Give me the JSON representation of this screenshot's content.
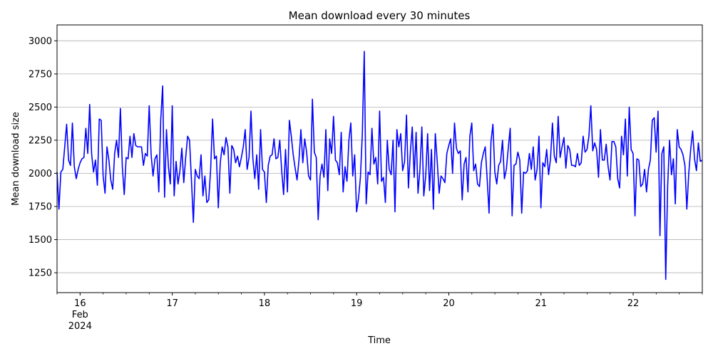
{
  "chart_data": {
    "type": "line",
    "title": "Mean download every 30 minutes",
    "xlabel": "Time",
    "ylabel": "Mean download size",
    "ylim": [
      1100,
      3120
    ],
    "xlim": [
      15.75,
      22.75
    ],
    "x_unit": "day of February 2024 (fractional)",
    "grid": "horizontal",
    "line_color": "#0000ff",
    "x_ticks": [
      {
        "value": 16,
        "label": "16",
        "sub1": "Feb",
        "sub2": "2024"
      },
      {
        "value": 17,
        "label": "17"
      },
      {
        "value": 18,
        "label": "18"
      },
      {
        "value": 19,
        "label": "19"
      },
      {
        "value": 20,
        "label": "20"
      },
      {
        "value": 21,
        "label": "21"
      },
      {
        "value": 22,
        "label": "22"
      }
    ],
    "y_ticks": [
      1250,
      1500,
      1750,
      2000,
      2250,
      2500,
      2750,
      3000
    ],
    "series": [
      {
        "start_day": 15.75,
        "step_days": 0.02083,
        "values": [
          2010,
          1730,
          2010,
          2030,
          2200,
          2370,
          2100,
          2060,
          2380,
          2050,
          1960,
          2030,
          2080,
          2110,
          2120,
          2340,
          2150,
          2520,
          2150,
          2010,
          2100,
          1910,
          2410,
          2400,
          1980,
          1850,
          2200,
          2100,
          1950,
          1880,
          2150,
          2250,
          2120,
          2490,
          2050,
          1840,
          2120,
          2110,
          2280,
          2120,
          2300,
          2210,
          2200,
          2200,
          2200,
          2060,
          2150,
          2130,
          2510,
          2140,
          1980,
          2110,
          2140,
          1860,
          2400,
          2660,
          1820,
          2330,
          2050,
          1920,
          2510,
          1830,
          2090,
          1920,
          2020,
          2190,
          1930,
          2120,
          2280,
          2250,
          1950,
          1630,
          2030,
          1980,
          1960,
          2140,
          1830,
          1980,
          1780,
          1800,
          2030,
          2410,
          2110,
          2130,
          1740,
          2080,
          2200,
          2140,
          2270,
          2200,
          1850,
          2210,
          2180,
          2080,
          2130,
          2050,
          2120,
          2200,
          2330,
          2030,
          2120,
          2470,
          2110,
          1960,
          2140,
          1880,
          2330,
          2030,
          2010,
          1780,
          2060,
          2130,
          2140,
          2260,
          2110,
          2120,
          2250,
          2020,
          1840,
          2180,
          1860,
          2400,
          2280,
          2140,
          2040,
          1950,
          2100,
          2330,
          2080,
          2260,
          2160,
          1980,
          1950,
          2560,
          2160,
          2120,
          1650,
          1980,
          2070,
          1970,
          2330,
          1870,
          2260,
          2150,
          2430,
          2100,
          2080,
          1990,
          2310,
          1860,
          2050,
          1940,
          2250,
          2380,
          1980,
          2140,
          1710,
          1810,
          1970,
          2300,
          2920,
          1770,
          2010,
          1990,
          2340,
          2070,
          2120,
          1920,
          2470,
          1940,
          1970,
          1780,
          2250,
          2030,
          1990,
          2250,
          1710,
          2330,
          2200,
          2300,
          2020,
          2090,
          2440,
          1890,
          2160,
          2350,
          1970,
          2310,
          1850,
          2030,
          2350,
          1830,
          1980,
          2300,
          1870,
          2180,
          1730,
          2300,
          2090,
          1850,
          1980,
          1960,
          1930,
          2150,
          2210,
          2260,
          2000,
          2380,
          2190,
          2150,
          2170,
          1800,
          2070,
          2120,
          1860,
          2280,
          2380,
          2020,
          2070,
          1920,
          1900,
          2080,
          2150,
          2200,
          1960,
          1700,
          2240,
          2370,
          2010,
          1920,
          2060,
          2090,
          2250,
          1960,
          2030,
          2190,
          2340,
          1680,
          2060,
          2070,
          2160,
          2100,
          1700,
          2010,
          2000,
          2020,
          2150,
          2030,
          2200,
          1950,
          2030,
          2280,
          1740,
          2080,
          2050,
          2180,
          1990,
          2110,
          2380,
          2130,
          2080,
          2430,
          2120,
          2200,
          2270,
          2040,
          2210,
          2180,
          2060,
          2060,
          2050,
          2150,
          2060,
          2080,
          2280,
          2160,
          2180,
          2280,
          2510,
          2170,
          2230,
          2180,
          1970,
          2330,
          2100,
          2100,
          2220,
          2050,
          1950,
          2240,
          2240,
          2200,
          1960,
          1890,
          2280,
          2140,
          2410,
          1980,
          2500,
          2180,
          2150,
          1680,
          2110,
          2100,
          1900,
          1920,
          2030,
          1860,
          2030,
          2100,
          2400,
          2420,
          2160,
          2470,
          1530,
          2150,
          2200,
          1200,
          1900,
          2250,
          1990,
          2110,
          1770,
          2330,
          2200,
          2180,
          2140,
          2060,
          1730,
          2000,
          2180,
          2320,
          2110,
          2020,
          2230,
          2090,
          2100
        ]
      }
    ]
  }
}
